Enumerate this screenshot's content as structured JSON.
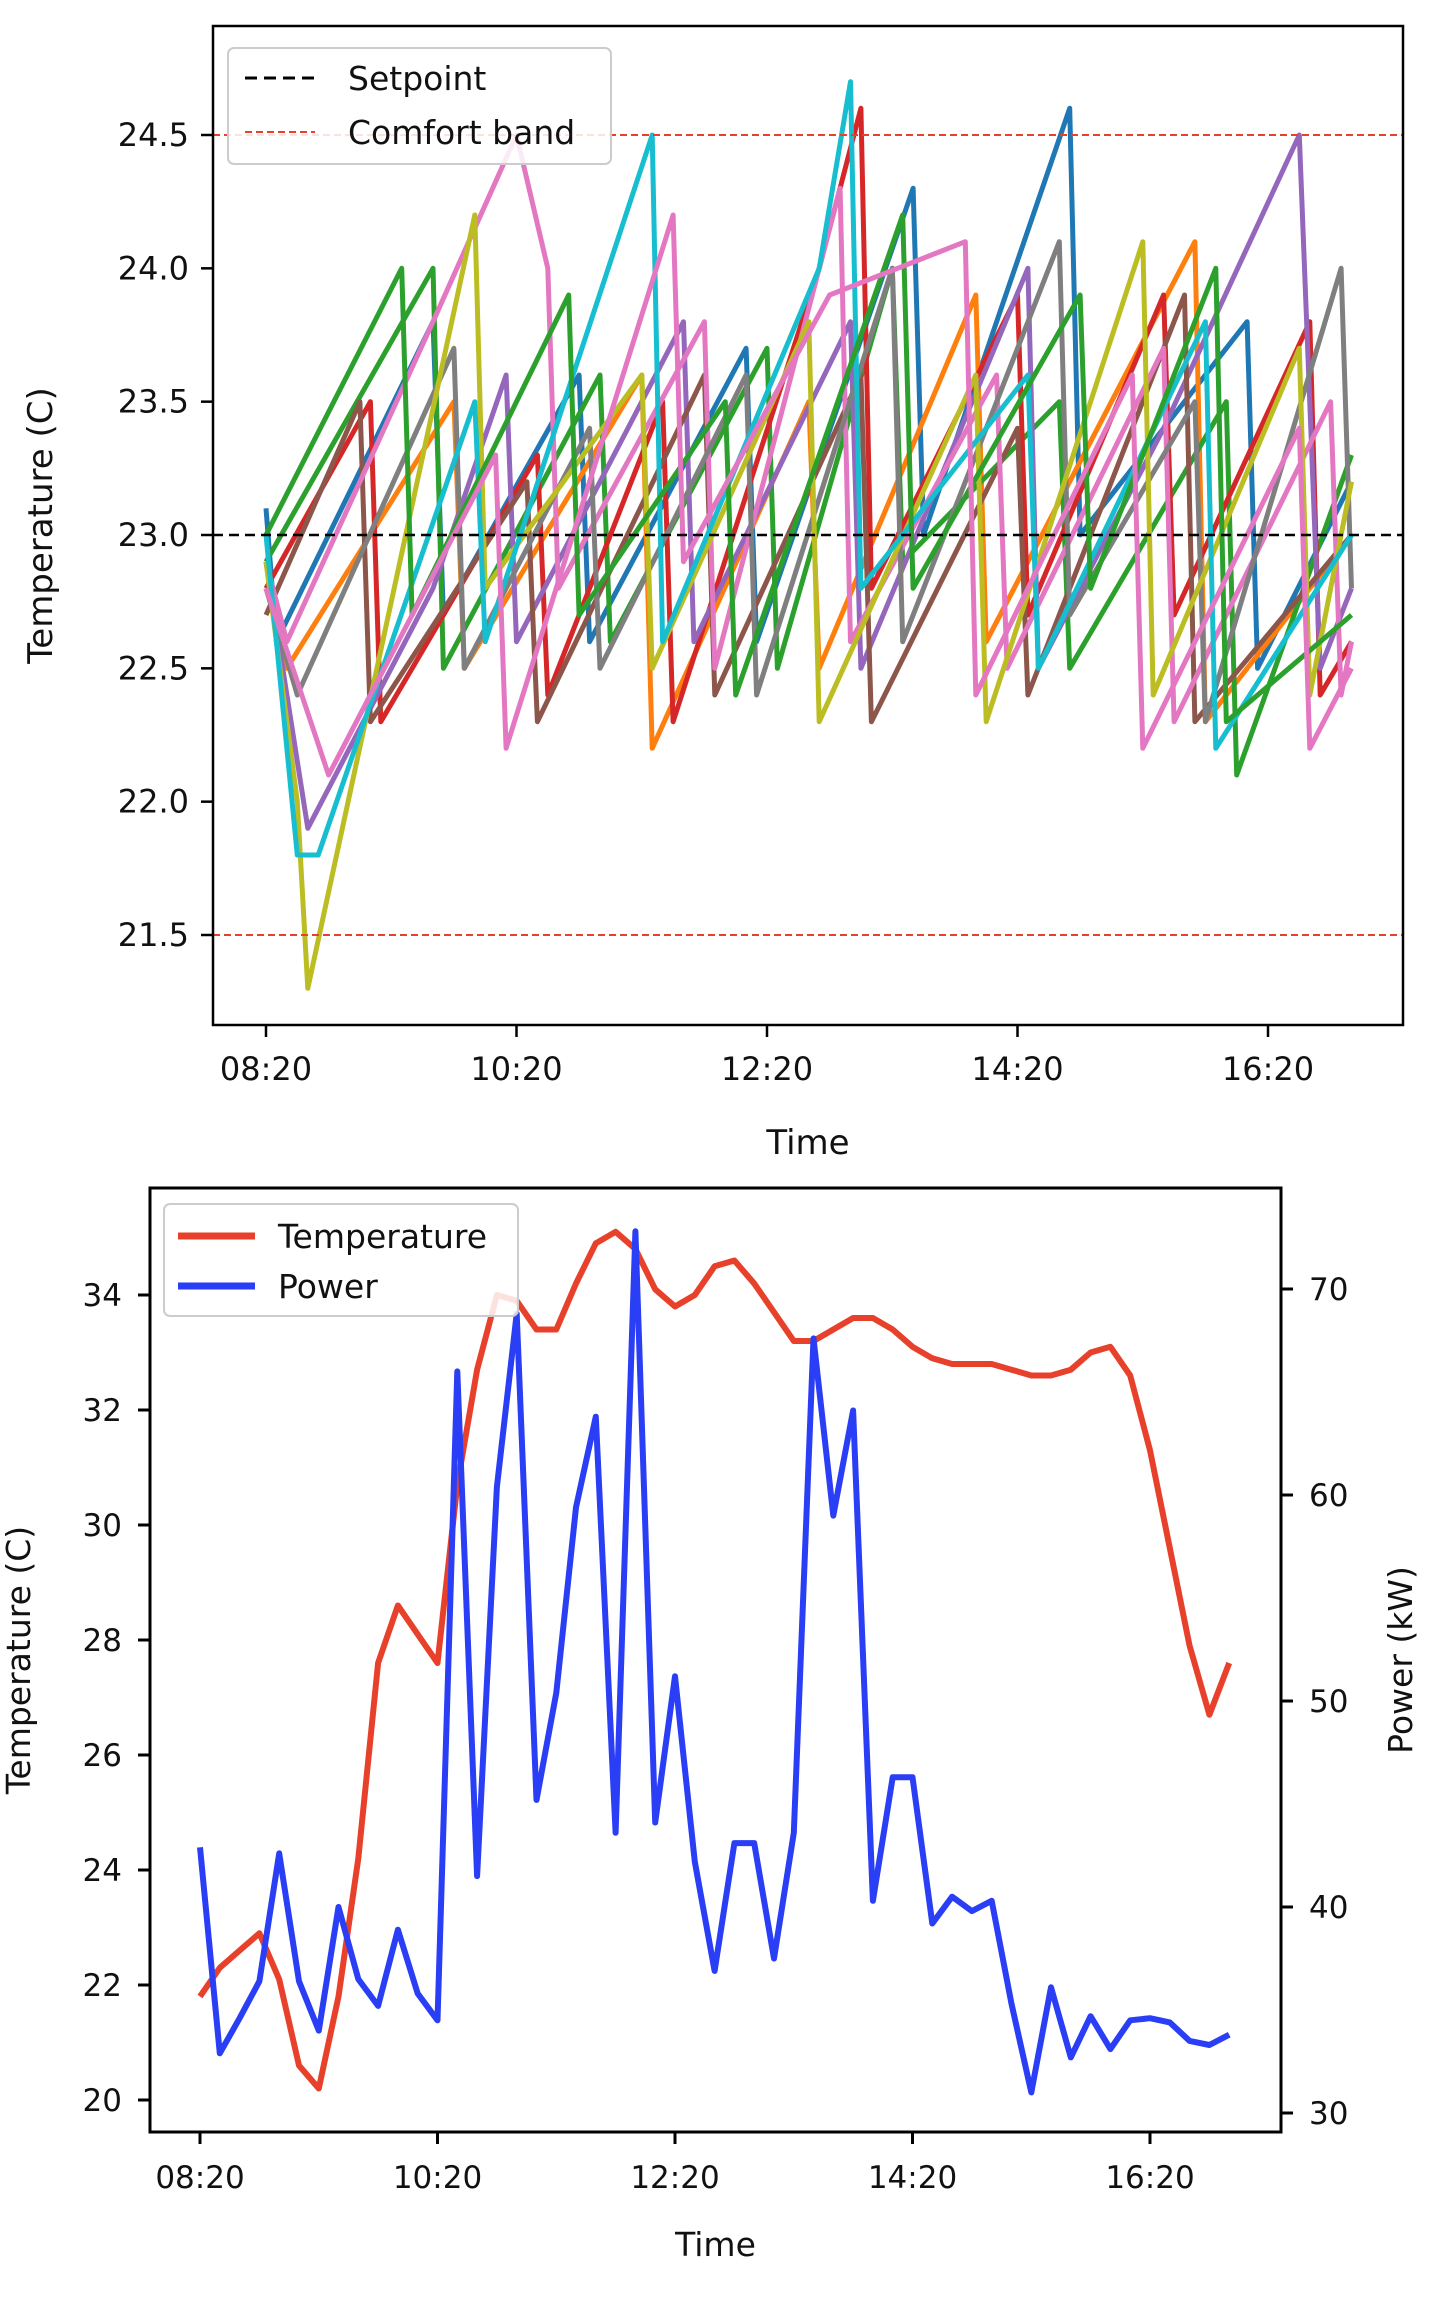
{
  "chart_data": [
    {
      "type": "line",
      "xlabel": "Time",
      "ylabel": "Temperature (C)",
      "xticks": [
        "08:20",
        "10:20",
        "12:20",
        "14:20",
        "16:20"
      ],
      "yticks": [
        "21.5",
        "22.0",
        "22.5",
        "23.0",
        "23.5",
        "24.0",
        "24.5"
      ],
      "xlim": [
        "07:55",
        "17:25"
      ],
      "ylim": [
        21.16,
        24.91
      ],
      "grid": false,
      "legend": {
        "position": "top-left",
        "entries": [
          {
            "label": "Setpoint",
            "color": "#000000",
            "style": "dashed"
          },
          {
            "label": "Comfort band",
            "color": "#e8412b",
            "style": "dashed"
          }
        ]
      },
      "reference_lines": {
        "setpoint": 23.0,
        "comfort_band": [
          21.5,
          24.5
        ]
      },
      "series": [
        {
          "color": "#1f77b4",
          "points": [
            [
              "08:20",
              23.1
            ],
            [
              "08:25",
              22.6
            ],
            [
              "09:40",
              23.8
            ],
            [
              "09:45",
              22.7
            ],
            [
              "10:50",
              23.6
            ],
            [
              "10:55",
              22.6
            ],
            [
              "12:10",
              23.7
            ],
            [
              "12:15",
              22.6
            ],
            [
              "13:30",
              24.3
            ],
            [
              "13:35",
              23.0
            ],
            [
              "14:45",
              24.6
            ],
            [
              "14:50",
              23.0
            ],
            [
              "16:10",
              23.8
            ],
            [
              "16:15",
              22.5
            ],
            [
              "17:00",
              23.2
            ]
          ]
        },
        {
          "color": "#ff7f0e",
          "points": [
            [
              "08:20",
              22.9
            ],
            [
              "08:30",
              22.5
            ],
            [
              "09:50",
              23.5
            ],
            [
              "09:55",
              22.5
            ],
            [
              "11:20",
              23.6
            ],
            [
              "11:25",
              22.2
            ],
            [
              "12:40",
              23.5
            ],
            [
              "12:45",
              22.5
            ],
            [
              "14:00",
              23.9
            ],
            [
              "14:05",
              22.6
            ],
            [
              "15:45",
              24.1
            ],
            [
              "15:50",
              22.3
            ],
            [
              "17:00",
              23.0
            ]
          ]
        },
        {
          "color": "#2ca02c",
          "points": [
            [
              "08:20",
              22.9
            ],
            [
              "09:40",
              24.0
            ],
            [
              "09:45",
              22.5
            ],
            [
              "11:00",
              23.6
            ],
            [
              "11:05",
              22.6
            ],
            [
              "12:20",
              23.7
            ],
            [
              "12:25",
              22.5
            ],
            [
              "13:20",
              24.0
            ],
            [
              "13:25",
              22.9
            ],
            [
              "14:40",
              23.5
            ],
            [
              "14:45",
              22.5
            ],
            [
              "16:00",
              23.5
            ],
            [
              "16:05",
              22.1
            ],
            [
              "17:00",
              23.3
            ]
          ]
        },
        {
          "color": "#d62728",
          "points": [
            [
              "08:20",
              22.8
            ],
            [
              "09:10",
              23.5
            ],
            [
              "09:15",
              22.3
            ],
            [
              "10:30",
              23.3
            ],
            [
              "10:35",
              22.4
            ],
            [
              "11:30",
              23.5
            ],
            [
              "11:35",
              22.3
            ],
            [
              "12:45",
              24.0
            ],
            [
              "13:05",
              24.6
            ],
            [
              "13:10",
              22.8
            ],
            [
              "14:20",
              23.9
            ],
            [
              "14:25",
              22.7
            ],
            [
              "15:30",
              23.9
            ],
            [
              "15:35",
              22.7
            ],
            [
              "16:40",
              23.8
            ],
            [
              "16:45",
              22.4
            ],
            [
              "17:00",
              22.6
            ]
          ]
        },
        {
          "color": "#9467bd",
          "points": [
            [
              "08:20",
              22.9
            ],
            [
              "08:40",
              21.9
            ],
            [
              "09:40",
              22.8
            ],
            [
              "10:15",
              23.6
            ],
            [
              "10:20",
              22.6
            ],
            [
              "11:40",
              23.8
            ],
            [
              "11:45",
              22.6
            ],
            [
              "13:00",
              23.8
            ],
            [
              "13:05",
              22.5
            ],
            [
              "14:25",
              24.0
            ],
            [
              "14:30",
              22.5
            ],
            [
              "15:30",
              23.4
            ],
            [
              "16:35",
              24.5
            ],
            [
              "16:45",
              22.5
            ],
            [
              "17:00",
              22.8
            ]
          ]
        },
        {
          "color": "#8c564b",
          "points": [
            [
              "08:20",
              22.7
            ],
            [
              "09:05",
              23.5
            ],
            [
              "09:10",
              22.3
            ],
            [
              "10:25",
              23.2
            ],
            [
              "10:30",
              22.3
            ],
            [
              "11:50",
              23.6
            ],
            [
              "11:55",
              22.4
            ],
            [
              "13:05",
              23.6
            ],
            [
              "13:10",
              22.3
            ],
            [
              "14:20",
              23.4
            ],
            [
              "14:25",
              22.4
            ],
            [
              "15:40",
              23.9
            ],
            [
              "15:45",
              22.3
            ],
            [
              "17:00",
              23.0
            ]
          ]
        },
        {
          "color": "#e377c2",
          "points": [
            [
              "08:20",
              22.9
            ],
            [
              "08:30",
              22.6
            ],
            [
              "09:40",
              23.8
            ],
            [
              "10:20",
              24.5
            ],
            [
              "10:35",
              24.0
            ],
            [
              "10:40",
              22.8
            ],
            [
              "11:50",
              23.8
            ],
            [
              "11:55",
              22.5
            ],
            [
              "12:55",
              24.3
            ],
            [
              "13:00",
              22.6
            ],
            [
              "14:10",
              23.6
            ],
            [
              "14:15",
              22.5
            ],
            [
              "15:30",
              23.7
            ],
            [
              "15:35",
              22.3
            ],
            [
              "16:50",
              23.5
            ],
            [
              "16:55",
              22.4
            ],
            [
              "17:00",
              22.6
            ]
          ]
        },
        {
          "color": "#7f7f7f",
          "points": [
            [
              "08:20",
              22.8
            ],
            [
              "08:35",
              22.4
            ],
            [
              "09:50",
              23.7
            ],
            [
              "09:55",
              22.5
            ],
            [
              "10:55",
              23.4
            ],
            [
              "11:00",
              22.5
            ],
            [
              "12:10",
              23.6
            ],
            [
              "12:15",
              22.4
            ],
            [
              "13:20",
              24.0
            ],
            [
              "13:25",
              22.6
            ],
            [
              "14:40",
              24.1
            ],
            [
              "14:45",
              22.7
            ],
            [
              "15:45",
              23.5
            ],
            [
              "15:50",
              22.3
            ],
            [
              "16:55",
              24.0
            ],
            [
              "17:00",
              22.8
            ]
          ]
        },
        {
          "color": "#bcbd22",
          "points": [
            [
              "08:20",
              22.9
            ],
            [
              "08:35",
              22.0
            ],
            [
              "08:40",
              21.3
            ],
            [
              "10:00",
              24.2
            ],
            [
              "10:05",
              22.8
            ],
            [
              "11:20",
              23.6
            ],
            [
              "11:25",
              22.5
            ],
            [
              "12:40",
              23.8
            ],
            [
              "12:45",
              22.3
            ],
            [
              "14:00",
              23.6
            ],
            [
              "14:05",
              22.3
            ],
            [
              "15:20",
              24.1
            ],
            [
              "15:25",
              22.4
            ],
            [
              "16:35",
              23.7
            ],
            [
              "16:40",
              22.4
            ],
            [
              "17:00",
              23.2
            ]
          ]
        },
        {
          "color": "#17becf",
          "points": [
            [
              "08:20",
              23.0
            ],
            [
              "08:35",
              21.8
            ],
            [
              "08:45",
              21.8
            ],
            [
              "10:00",
              23.5
            ],
            [
              "10:05",
              22.6
            ],
            [
              "11:25",
              24.5
            ],
            [
              "11:30",
              22.6
            ],
            [
              "12:45",
              24.0
            ],
            [
              "13:00",
              24.7
            ],
            [
              "13:05",
              22.8
            ],
            [
              "14:25",
              23.6
            ],
            [
              "14:30",
              22.5
            ],
            [
              "15:50",
              23.8
            ],
            [
              "15:55",
              22.2
            ],
            [
              "17:00",
              23.0
            ]
          ]
        },
        {
          "color": "#2ca02c",
          "points": [
            [
              "08:20",
              23.0
            ],
            [
              "09:25",
              24.0
            ],
            [
              "09:30",
              22.7
            ],
            [
              "10:45",
              23.9
            ],
            [
              "10:50",
              22.7
            ],
            [
              "12:00",
              23.5
            ],
            [
              "12:05",
              22.4
            ],
            [
              "13:25",
              24.2
            ],
            [
              "13:30",
              22.8
            ],
            [
              "14:50",
              23.9
            ],
            [
              "14:55",
              22.8
            ],
            [
              "15:55",
              24.0
            ],
            [
              "16:00",
              22.3
            ],
            [
              "17:00",
              22.7
            ]
          ]
        },
        {
          "color": "#e377c2",
          "points": [
            [
              "08:20",
              22.8
            ],
            [
              "08:50",
              22.1
            ],
            [
              "10:10",
              23.3
            ],
            [
              "10:15",
              22.2
            ],
            [
              "11:35",
              24.2
            ],
            [
              "11:40",
              22.9
            ],
            [
              "12:50",
              23.9
            ],
            [
              "13:55",
              24.1
            ],
            [
              "14:00",
              22.4
            ],
            [
              "15:15",
              23.6
            ],
            [
              "15:20",
              22.2
            ],
            [
              "16:35",
              23.4
            ],
            [
              "16:40",
              22.2
            ],
            [
              "17:00",
              22.5
            ]
          ]
        }
      ]
    },
    {
      "type": "line",
      "xlabel": "Time",
      "ylabel": "Temperature (C)",
      "ylabel_right": "Power (kW)",
      "xticks": [
        "08:20",
        "10:20",
        "12:20",
        "14:20",
        "16:20"
      ],
      "yticks": [
        "20",
        "22",
        "24",
        "26",
        "28",
        "30",
        "32",
        "34"
      ],
      "yticks_right": [
        "30",
        "40",
        "50",
        "60",
        "70"
      ],
      "xlim": [
        "07:55",
        "17:26"
      ],
      "ylim": [
        19.44,
        35.86
      ],
      "ylim_right": [
        29.1,
        74.9
      ],
      "grid": false,
      "legend": {
        "position": "top-left"
      },
      "x_start": "08:20",
      "x_step_minutes": 10,
      "series": [
        {
          "name": "Temperature",
          "axis": "left",
          "color": "#e8412b",
          "values": [
            21.8,
            22.3,
            22.6,
            22.9,
            22.1,
            20.6,
            20.2,
            21.8,
            24.2,
            27.6,
            28.6,
            28.1,
            27.6,
            30.7,
            32.7,
            34.0,
            33.9,
            33.4,
            33.4,
            34.2,
            34.9,
            35.1,
            34.8,
            34.1,
            33.8,
            34.0,
            34.5,
            34.6,
            34.2,
            33.7,
            33.2,
            33.2,
            33.4,
            33.6,
            33.6,
            33.4,
            33.1,
            32.9,
            32.8,
            32.8,
            32.8,
            32.7,
            32.6,
            32.6,
            32.7,
            33.0,
            33.1,
            32.6,
            31.3,
            29.6,
            27.9,
            26.7,
            27.6
          ]
        },
        {
          "name": "Power",
          "axis": "right",
          "color": "#2a3ef5",
          "values": [
            42.9,
            32.9,
            34.6,
            36.4,
            42.6,
            36.4,
            34.0,
            40.0,
            36.5,
            35.2,
            38.9,
            35.8,
            34.5,
            66.0,
            41.5,
            60.4,
            68.8,
            45.2,
            50.4,
            59.4,
            63.8,
            43.6,
            72.8,
            44.1,
            51.2,
            42.2,
            36.9,
            43.1,
            43.1,
            37.5,
            43.6,
            67.6,
            59.0,
            64.1,
            40.3,
            46.3,
            46.3,
            39.2,
            40.5,
            39.8,
            40.3,
            35.3,
            31.0,
            36.1,
            32.7,
            34.7,
            33.1,
            34.5,
            34.6,
            34.4,
            33.5,
            33.3,
            33.8
          ]
        }
      ]
    }
  ]
}
